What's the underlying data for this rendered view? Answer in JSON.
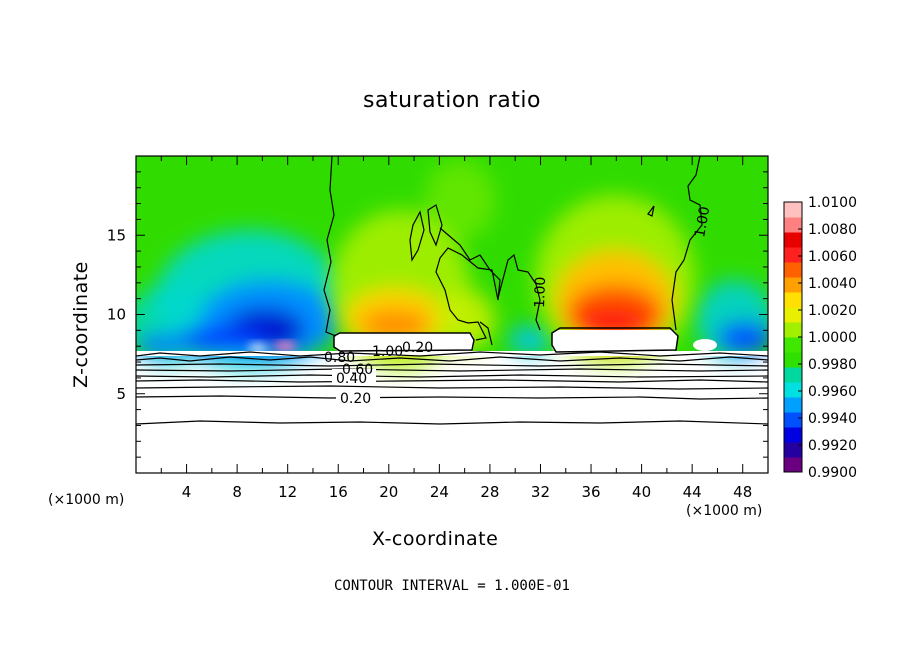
{
  "chart_data": {
    "type": "heatmap",
    "title": "saturation ratio",
    "xlabel": "X-coordinate",
    "ylabel": "Z-coordinate",
    "x_unit_left": "(×1000 m)",
    "x_unit_right": "(×1000 m)",
    "xlim": [
      0,
      50
    ],
    "ylim": [
      0,
      20
    ],
    "x_ticks": [
      4,
      8,
      12,
      16,
      20,
      24,
      28,
      32,
      36,
      40,
      44,
      48
    ],
    "y_ticks": [
      5,
      10,
      15
    ],
    "colorbar": {
      "min": 0.99,
      "max": 1.01,
      "ticks": [
        "1.0100",
        "1.0080",
        "1.0060",
        "1.0040",
        "1.0020",
        "1.0000",
        "0.9980",
        "0.9960",
        "0.9940",
        "0.9920",
        "0.9900"
      ],
      "colors": [
        "#6a0080",
        "#2400a0",
        "#0000e0",
        "#0050ff",
        "#00a0ff",
        "#00e0e0",
        "#00d8a0",
        "#30e000",
        "#40e800",
        "#a0f000",
        "#e8f000",
        "#ffe000",
        "#ffa000",
        "#ff6000",
        "#ff2020",
        "#e80000",
        "#ff8080",
        "#ffc0c0"
      ]
    },
    "contour_labels": [
      "0.20",
      "0.40",
      "0.60",
      "0.80",
      "1.00",
      "0.20",
      "1.00",
      "1.00"
    ],
    "contour_levels_y": [
      3.4,
      4.8,
      5.6,
      6.0,
      6.4,
      6.7,
      7.0,
      7.3,
      7.6
    ],
    "contour_interval": "1.000E-01"
  },
  "footnote": "CONTOUR INTERVAL = 1.000E-01"
}
